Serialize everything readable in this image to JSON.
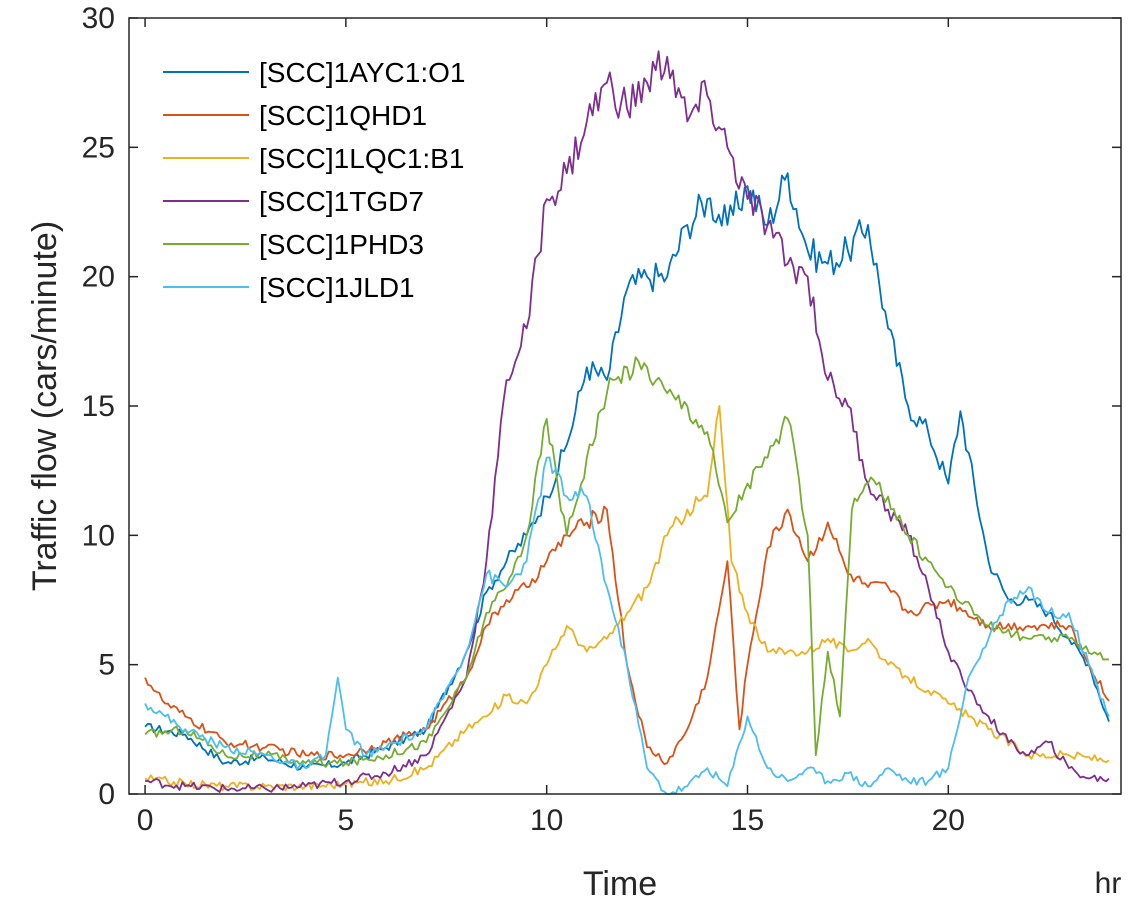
{
  "chart_data": {
    "type": "line",
    "xlabel": "Time",
    "xunit": "hr",
    "ylabel": "Traffic flow (cars/minute)",
    "xlim": [
      -0.4,
      24.3
    ],
    "ylim": [
      0,
      30
    ],
    "xticks": [
      0,
      5,
      10,
      15,
      20
    ],
    "yticks": [
      0,
      5,
      10,
      15,
      20,
      25,
      30
    ],
    "grid": false,
    "legend_position": "top-left",
    "series": [
      {
        "name": "[SCC]1AYC1:O1",
        "color": "#0072bd",
        "x": [
          0,
          1,
          2,
          3,
          4,
          5,
          6,
          7,
          8,
          8.5,
          9,
          9.5,
          10,
          10.5,
          11,
          11.5,
          12,
          12.5,
          13,
          13.5,
          14,
          14.5,
          15,
          15.5,
          16,
          16.5,
          17,
          17.5,
          18,
          18.5,
          19,
          19.5,
          20,
          20.3,
          21,
          21.5,
          22,
          22.5,
          23,
          23.5,
          24
        ],
        "values": [
          2.6,
          2.3,
          1.2,
          1.4,
          1.0,
          1.2,
          1.8,
          2.5,
          5.5,
          7.8,
          9.0,
          10.0,
          11.5,
          13.5,
          16.5,
          16.0,
          19.5,
          20.0,
          20.0,
          22.0,
          23.0,
          22.0,
          23.5,
          22.0,
          24.0,
          21.0,
          20.5,
          21.0,
          22.0,
          18.0,
          15.0,
          14.0,
          12.0,
          14.8,
          9.0,
          7.5,
          7.5,
          7.0,
          6.0,
          5.0,
          2.8
        ]
      },
      {
        "name": "[SCC]1QHD1",
        "color": "#d95319",
        "x": [
          0,
          0.5,
          1,
          2,
          3,
          4,
          5,
          6,
          7,
          8,
          8.5,
          9,
          9.5,
          10,
          10.5,
          11,
          11.5,
          12,
          12.5,
          13,
          13.5,
          14,
          14.5,
          14.8,
          15,
          15.5,
          16,
          16.5,
          17,
          17.5,
          18,
          18.5,
          19,
          20,
          21,
          22,
          23,
          24
        ],
        "values": [
          4.5,
          3.5,
          3.0,
          2.0,
          1.8,
          1.5,
          1.5,
          2.0,
          2.5,
          4.5,
          6.5,
          7.5,
          8.0,
          9.0,
          10.0,
          10.5,
          11.0,
          5.0,
          1.8,
          1.2,
          2.5,
          4.5,
          9.0,
          2.5,
          5.0,
          9.5,
          11.0,
          9.0,
          10.5,
          8.5,
          8.0,
          8.0,
          7.0,
          7.5,
          6.5,
          6.5,
          6.5,
          3.6
        ]
      },
      {
        "name": "[SCC]1LQC1:B1",
        "color": "#edb120",
        "x": [
          0,
          1,
          2,
          3,
          4,
          5,
          6,
          7,
          8,
          8.5,
          9,
          9.5,
          10,
          10.5,
          11,
          11.5,
          12,
          12.5,
          13,
          13.5,
          14,
          14.3,
          14.6,
          15,
          15.5,
          16,
          16.5,
          17,
          17.5,
          18,
          18.5,
          19,
          19.5,
          20,
          20.5,
          21,
          22,
          23,
          24
        ],
        "values": [
          0.6,
          0.4,
          0.3,
          0.3,
          0.3,
          0.4,
          0.5,
          1.0,
          2.5,
          3.0,
          3.8,
          3.5,
          5.0,
          6.5,
          5.5,
          6.0,
          7.0,
          8.0,
          10.0,
          11.0,
          11.5,
          15.0,
          9.0,
          7.0,
          5.5,
          5.5,
          5.5,
          6.0,
          5.5,
          6.0,
          5.0,
          4.5,
          4.0,
          3.5,
          3.0,
          2.5,
          1.5,
          1.5,
          1.3
        ]
      },
      {
        "name": "[SCC]1TGD7",
        "color": "#7e2f8e",
        "x": [
          0,
          1,
          2,
          3,
          4,
          5,
          6,
          7,
          8,
          8.5,
          9,
          9.5,
          10,
          10.5,
          11,
          11.5,
          12,
          12.5,
          13,
          13.5,
          14,
          14.5,
          15,
          15.5,
          16,
          16.5,
          17,
          17.5,
          18,
          18.5,
          19,
          19.5,
          20,
          20.5,
          21,
          21.5,
          22,
          22.5,
          23,
          23.5,
          24
        ],
        "values": [
          0.5,
          0.3,
          0.2,
          0.2,
          0.3,
          0.5,
          0.8,
          1.5,
          4.5,
          9.0,
          16.0,
          18.0,
          23.0,
          24.0,
          26.0,
          27.5,
          26.5,
          27.5,
          28.5,
          26.0,
          27.0,
          25.0,
          23.0,
          22.0,
          20.5,
          20.0,
          16.0,
          15.0,
          12.0,
          11.0,
          10.0,
          8.0,
          5.5,
          4.0,
          3.0,
          2.0,
          1.5,
          2.0,
          1.0,
          0.6,
          0.6
        ]
      },
      {
        "name": "[SCC]1PHD3",
        "color": "#77ac30",
        "x": [
          0,
          1,
          2,
          3,
          4,
          5,
          6,
          7,
          8,
          8.5,
          9,
          9.5,
          10,
          10.5,
          11,
          11.5,
          12,
          12.5,
          13,
          13.5,
          14,
          14.5,
          15,
          15.5,
          16,
          16.5,
          16.7,
          17,
          17.3,
          17.6,
          18,
          18.5,
          19,
          19.5,
          20,
          21,
          22,
          23,
          24
        ],
        "values": [
          2.3,
          2.5,
          1.5,
          1.5,
          1.2,
          1.2,
          1.5,
          2.0,
          4.5,
          7.0,
          8.0,
          10.0,
          14.5,
          10.0,
          13.0,
          15.5,
          16.5,
          16.5,
          15.5,
          15.0,
          14.0,
          10.5,
          12.0,
          13.0,
          14.5,
          10.0,
          1.5,
          5.5,
          3.0,
          11.0,
          12.0,
          11.5,
          10.0,
          9.0,
          8.0,
          6.5,
          6.0,
          6.0,
          5.2
        ]
      },
      {
        "name": "[SCC]1JLD1",
        "color": "#4dbeee",
        "x": [
          0,
          0.5,
          1,
          2,
          3,
          4,
          4.5,
          4.8,
          5,
          5.5,
          6,
          7,
          8,
          8.5,
          9,
          9.5,
          10,
          10.5,
          11,
          11.5,
          12,
          12.5,
          13,
          13.5,
          14,
          14.5,
          15,
          15.5,
          16,
          16.5,
          17,
          17.5,
          18,
          18.5,
          19,
          19.5,
          20,
          20.5,
          21,
          21.5,
          22,
          22.5,
          23,
          23.5,
          24
        ],
        "values": [
          3.5,
          3.0,
          2.5,
          1.8,
          1.5,
          1.0,
          1.5,
          4.5,
          2.5,
          1.5,
          1.8,
          2.5,
          5.5,
          8.5,
          8.0,
          9.0,
          13.0,
          11.5,
          11.5,
          8.0,
          5.0,
          1.0,
          0.0,
          0.3,
          1.0,
          0.3,
          3.0,
          1.0,
          0.5,
          1.0,
          0.5,
          0.8,
          0.3,
          1.0,
          0.5,
          0.5,
          1.0,
          4.5,
          6.0,
          7.5,
          8.0,
          7.0,
          7.0,
          5.0,
          3.0
        ]
      }
    ]
  }
}
